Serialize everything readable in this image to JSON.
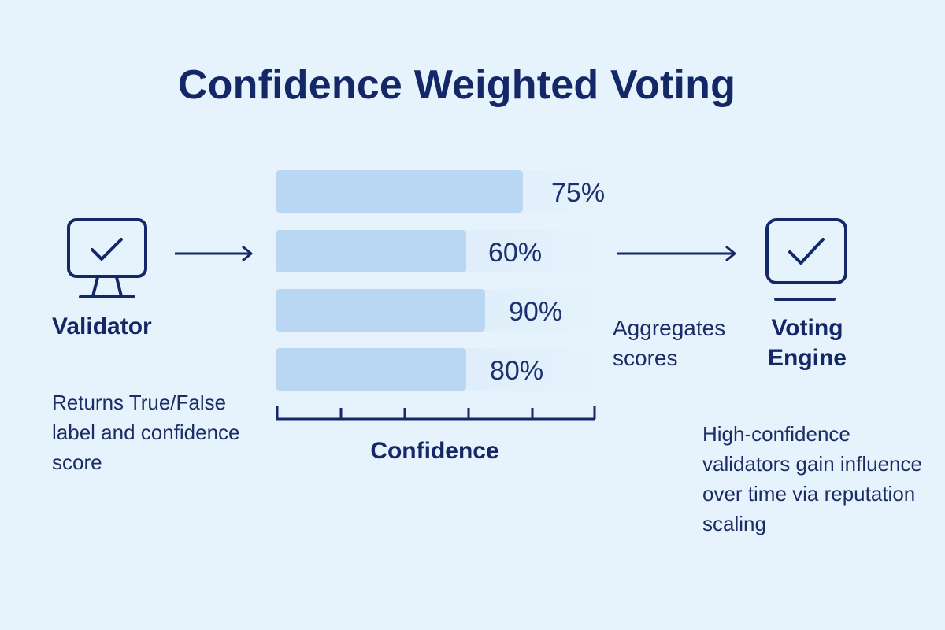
{
  "title": "Confidence Weighted Voting",
  "validator": {
    "label": "Validator",
    "description": "Returns True/False label and confidence score",
    "icon": "monitor-check-icon"
  },
  "confidence_bars": [
    {
      "value": 0.75,
      "label": "75%"
    },
    {
      "value": 0.6,
      "label": "60%"
    },
    {
      "value": 0.9,
      "label": "90%"
    },
    {
      "value": 0.8,
      "label": "80%"
    }
  ],
  "axis": {
    "label": "Confidence"
  },
  "aggregation": {
    "label": "Aggregates scores"
  },
  "voting_engine": {
    "label": "Voting Engine",
    "description": "High-confidence validators gain influence over time via reputation scaling",
    "icon": "monitor-check-icon"
  },
  "colors": {
    "background": "#e6f3fc",
    "primary": "#142766",
    "bar_fill": "#b9d7f2",
    "bar_track": "#d9ebfa"
  }
}
